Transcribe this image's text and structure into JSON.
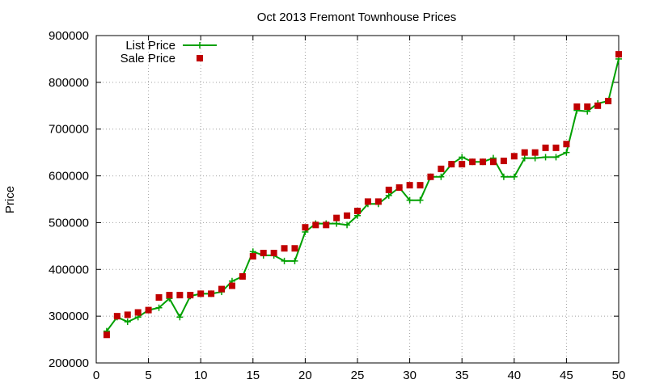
{
  "chart_data": {
    "type": "line",
    "title": "Oct 2013 Fremont Townhouse Prices",
    "xlabel": "",
    "ylabel": "Price",
    "xlim": [
      0,
      50
    ],
    "ylim": [
      200000,
      900000
    ],
    "x_ticks": [
      0,
      5,
      10,
      15,
      20,
      25,
      30,
      35,
      40,
      45,
      50
    ],
    "y_ticks": [
      200000,
      300000,
      400000,
      500000,
      600000,
      700000,
      800000,
      900000
    ],
    "grid": true,
    "legend_position": "top-left",
    "x": [
      1,
      2,
      3,
      4,
      5,
      6,
      7,
      8,
      9,
      10,
      11,
      12,
      13,
      14,
      15,
      16,
      17,
      18,
      19,
      20,
      21,
      22,
      23,
      24,
      25,
      26,
      27,
      28,
      29,
      30,
      31,
      32,
      33,
      34,
      35,
      36,
      37,
      38,
      39,
      40,
      41,
      42,
      43,
      44,
      45,
      46,
      47,
      48,
      49,
      50
    ],
    "series": [
      {
        "name": "List Price",
        "style": "lines+plus",
        "color": "#00a000",
        "values": [
          268000,
          298000,
          288000,
          298000,
          313000,
          318000,
          338000,
          298000,
          343000,
          348000,
          348000,
          352000,
          375000,
          385000,
          438000,
          430000,
          430000,
          418000,
          418000,
          480000,
          498000,
          498000,
          498000,
          495000,
          515000,
          540000,
          540000,
          558000,
          575000,
          548000,
          548000,
          598000,
          598000,
          625000,
          640000,
          630000,
          630000,
          638000,
          598000,
          598000,
          638000,
          638000,
          640000,
          640000,
          650000,
          740000,
          738000,
          755000,
          760000,
          850000
        ]
      },
      {
        "name": "Sale Price",
        "style": "points",
        "color": "#c00000",
        "values": [
          260000,
          300000,
          303000,
          308000,
          313000,
          340000,
          345000,
          345000,
          345000,
          348000,
          348000,
          358000,
          365000,
          385000,
          428000,
          435000,
          435000,
          445000,
          445000,
          490000,
          495000,
          495000,
          510000,
          515000,
          525000,
          545000,
          545000,
          570000,
          575000,
          580000,
          580000,
          598000,
          615000,
          625000,
          625000,
          630000,
          630000,
          630000,
          632000,
          642000,
          650000,
          650000,
          660000,
          660000,
          668000,
          748000,
          748000,
          750000,
          760000,
          860000
        ]
      }
    ]
  }
}
